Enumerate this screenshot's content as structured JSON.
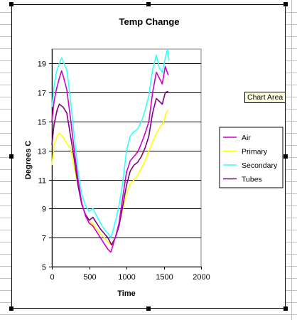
{
  "tooltip": {
    "text": "Chart Area"
  },
  "colors": {
    "Air": "#cc00cc",
    "Primary": "#ffff00",
    "Secondary": "#33ffff",
    "Tubes": "#800080"
  },
  "chart_data": {
    "type": "line",
    "title": "Temp Change",
    "xlabel": "Time",
    "ylabel": "Degrees C",
    "xlim": [
      0,
      2000
    ],
    "ylim": [
      5,
      20
    ],
    "xticks": [
      0,
      500,
      1000,
      1500,
      2000
    ],
    "yticks": [
      5,
      7,
      9,
      11,
      13,
      15,
      17,
      19
    ],
    "grid": "horizontal",
    "legend": "right",
    "series": [
      {
        "name": "Air",
        "points": [
          [
            0,
            15.0
          ],
          [
            30,
            16.4
          ],
          [
            60,
            17.2
          ],
          [
            100,
            18.0
          ],
          [
            130,
            18.5
          ],
          [
            160,
            18.0
          ],
          [
            200,
            17.2
          ],
          [
            250,
            15.2
          ],
          [
            300,
            13.0
          ],
          [
            350,
            11.0
          ],
          [
            400,
            9.4
          ],
          [
            450,
            8.5
          ],
          [
            500,
            8.0
          ],
          [
            550,
            7.8
          ],
          [
            600,
            7.4
          ],
          [
            650,
            7.0
          ],
          [
            700,
            6.6
          ],
          [
            750,
            6.2
          ],
          [
            790,
            6.0
          ],
          [
            820,
            6.5
          ],
          [
            860,
            7.2
          ],
          [
            900,
            8.0
          ],
          [
            950,
            9.8
          ],
          [
            1000,
            11.5
          ],
          [
            1050,
            12.3
          ],
          [
            1100,
            12.6
          ],
          [
            1150,
            12.9
          ],
          [
            1200,
            13.5
          ],
          [
            1250,
            14.2
          ],
          [
            1300,
            15.0
          ],
          [
            1350,
            17.0
          ],
          [
            1400,
            18.4
          ],
          [
            1440,
            18.0
          ],
          [
            1480,
            17.6
          ],
          [
            1520,
            18.8
          ],
          [
            1560,
            18.2
          ]
        ]
      },
      {
        "name": "Primary",
        "points": [
          [
            0,
            12.0
          ],
          [
            30,
            13.4
          ],
          [
            70,
            14.0
          ],
          [
            100,
            14.2
          ],
          [
            140,
            14.0
          ],
          [
            200,
            13.5
          ],
          [
            250,
            13.2
          ],
          [
            300,
            11.8
          ],
          [
            350,
            10.6
          ],
          [
            400,
            9.3
          ],
          [
            450,
            8.6
          ],
          [
            500,
            8.2
          ],
          [
            550,
            7.9
          ],
          [
            600,
            7.6
          ],
          [
            650,
            7.3
          ],
          [
            700,
            7.0
          ],
          [
            750,
            6.7
          ],
          [
            800,
            6.5
          ],
          [
            850,
            7.0
          ],
          [
            900,
            7.8
          ],
          [
            950,
            9.0
          ],
          [
            1000,
            10.0
          ],
          [
            1050,
            10.7
          ],
          [
            1100,
            11.0
          ],
          [
            1150,
            11.3
          ],
          [
            1200,
            11.8
          ],
          [
            1250,
            12.3
          ],
          [
            1300,
            13.0
          ],
          [
            1350,
            13.6
          ],
          [
            1400,
            14.2
          ],
          [
            1450,
            14.6
          ],
          [
            1500,
            15.0
          ],
          [
            1530,
            15.6
          ],
          [
            1560,
            15.8
          ]
        ]
      },
      {
        "name": "Secondary",
        "points": [
          [
            0,
            16.0
          ],
          [
            30,
            17.4
          ],
          [
            60,
            18.4
          ],
          [
            100,
            19.0
          ],
          [
            130,
            19.4
          ],
          [
            160,
            19.0
          ],
          [
            200,
            18.6
          ],
          [
            250,
            16.5
          ],
          [
            300,
            14.0
          ],
          [
            350,
            11.6
          ],
          [
            400,
            10.0
          ],
          [
            450,
            9.2
          ],
          [
            500,
            8.8
          ],
          [
            550,
            9.0
          ],
          [
            600,
            8.5
          ],
          [
            650,
            8.0
          ],
          [
            700,
            7.6
          ],
          [
            750,
            7.3
          ],
          [
            790,
            7.0
          ],
          [
            820,
            7.5
          ],
          [
            860,
            8.3
          ],
          [
            900,
            9.2
          ],
          [
            950,
            10.8
          ],
          [
            1000,
            13.0
          ],
          [
            1050,
            14.0
          ],
          [
            1100,
            14.3
          ],
          [
            1150,
            14.5
          ],
          [
            1200,
            15.0
          ],
          [
            1250,
            15.8
          ],
          [
            1300,
            16.8
          ],
          [
            1350,
            18.6
          ],
          [
            1400,
            19.6
          ],
          [
            1440,
            18.7
          ],
          [
            1480,
            18.4
          ],
          [
            1520,
            19.4
          ],
          [
            1550,
            20.0
          ],
          [
            1570,
            19.2
          ]
        ]
      },
      {
        "name": "Tubes",
        "points": [
          [
            0,
            13.4
          ],
          [
            30,
            14.8
          ],
          [
            70,
            15.8
          ],
          [
            100,
            16.2
          ],
          [
            150,
            16.0
          ],
          [
            200,
            15.6
          ],
          [
            250,
            14.0
          ],
          [
            300,
            12.4
          ],
          [
            350,
            10.6
          ],
          [
            400,
            9.3
          ],
          [
            450,
            8.6
          ],
          [
            500,
            8.2
          ],
          [
            550,
            8.4
          ],
          [
            600,
            8.0
          ],
          [
            650,
            7.6
          ],
          [
            700,
            7.3
          ],
          [
            750,
            7.0
          ],
          [
            800,
            6.5
          ],
          [
            850,
            7.0
          ],
          [
            900,
            7.8
          ],
          [
            950,
            9.2
          ],
          [
            1000,
            10.6
          ],
          [
            1050,
            11.6
          ],
          [
            1100,
            12.0
          ],
          [
            1150,
            12.2
          ],
          [
            1200,
            12.6
          ],
          [
            1250,
            13.2
          ],
          [
            1300,
            14.0
          ],
          [
            1350,
            15.6
          ],
          [
            1400,
            16.6
          ],
          [
            1440,
            16.4
          ],
          [
            1480,
            16.2
          ],
          [
            1520,
            17.0
          ],
          [
            1560,
            17.1
          ]
        ]
      }
    ]
  }
}
